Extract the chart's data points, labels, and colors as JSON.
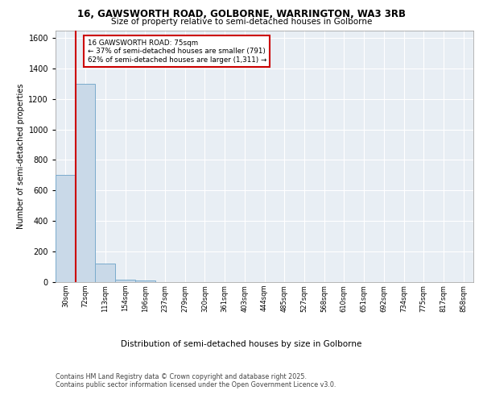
{
  "title1": "16, GAWSWORTH ROAD, GOLBORNE, WARRINGTON, WA3 3RB",
  "title2": "Size of property relative to semi-detached houses in Golborne",
  "xlabel": "Distribution of semi-detached houses by size in Golborne",
  "ylabel": "Number of semi-detached properties",
  "categories": [
    "30sqm",
    "72sqm",
    "113sqm",
    "154sqm",
    "196sqm",
    "237sqm",
    "279sqm",
    "320sqm",
    "361sqm",
    "403sqm",
    "444sqm",
    "485sqm",
    "527sqm",
    "568sqm",
    "610sqm",
    "651sqm",
    "692sqm",
    "734sqm",
    "775sqm",
    "817sqm",
    "858sqm"
  ],
  "values": [
    700,
    1300,
    120,
    15,
    8,
    0,
    0,
    0,
    0,
    0,
    0,
    0,
    0,
    0,
    0,
    0,
    0,
    0,
    0,
    0,
    0
  ],
  "bar_color": "#c9d9e8",
  "bar_edge_color": "#7aabcc",
  "red_line_x": 1.0,
  "annotation_title": "16 GAWSWORTH ROAD: 75sqm",
  "annotation_line1": "← 37% of semi-detached houses are smaller (791)",
  "annotation_line2": "62% of semi-detached houses are larger (1,311) →",
  "annotation_box_color": "#ffffff",
  "annotation_border_color": "#cc0000",
  "footer_line1": "Contains HM Land Registry data © Crown copyright and database right 2025.",
  "footer_line2": "Contains public sector information licensed under the Open Government Licence v3.0.",
  "plot_background": "#e8eef4",
  "ylim": [
    0,
    1650
  ],
  "yticks": [
    0,
    200,
    400,
    600,
    800,
    1000,
    1200,
    1400,
    1600
  ]
}
